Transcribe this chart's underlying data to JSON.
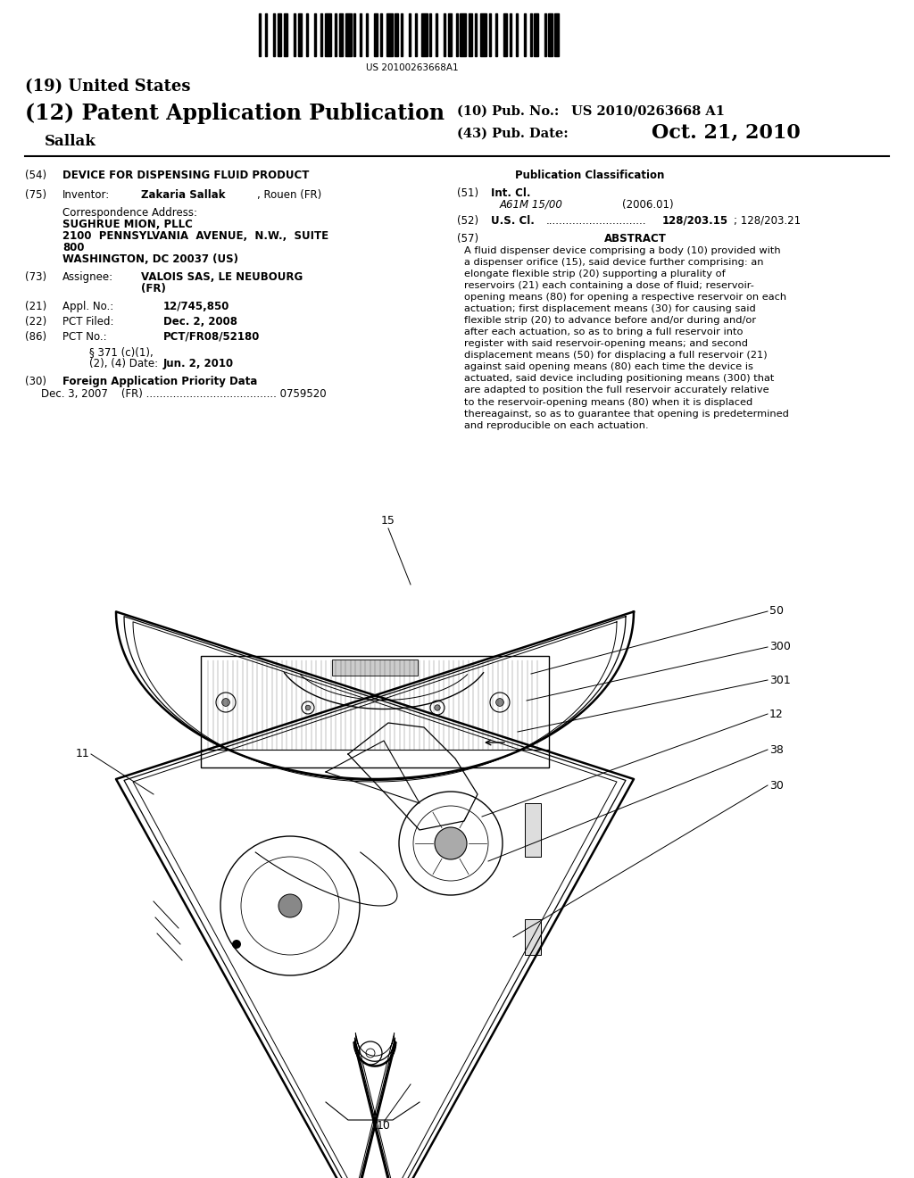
{
  "background_color": "#ffffff",
  "barcode_text": "US 20100263668A1",
  "title_19": "(19) United States",
  "title_12": "(12) Patent Application Publication",
  "pub_no_label": "(10) Pub. No.:",
  "pub_no_value": "US 2010/0263668 A1",
  "pub_date_label": "(43) Pub. Date:",
  "pub_date_value": "Oct. 21, 2010",
  "author": "Sallak",
  "field54_title": "DEVICE FOR DISPENSING FLUID PRODUCT",
  "field75_name_bold": "Zakaria Sallak",
  "field75_name_rest": ", Rouen (FR)",
  "corr_addr_label": "Correspondence Address:",
  "corr_addr_line1": "SUGHRUE MION, PLLC",
  "corr_addr_line2": "2100  PENNSYLVANIA  AVENUE,  N.W.,  SUITE",
  "corr_addr_line3": "800",
  "corr_addr_line4": "WASHINGTON, DC 20037 (US)",
  "field73_val1": "VALOIS SAS, LE NEUBOURG",
  "field73_val2": "(FR)",
  "field21_val": "12/745,850",
  "field22_val": "Dec. 2, 2008",
  "field86_val": "PCT/FR08/52180",
  "field86b_line1": "§ 371 (c)(1),",
  "field86b_line2": "(2), (4) Date:",
  "field86b_val": "Jun. 2, 2010",
  "field30_title": "Foreign Application Priority Data",
  "field30_line": "Dec. 3, 2007    (FR) ....................................... 0759520",
  "pub_class_title": "Publication Classification",
  "field51_class": "A61M 15/00",
  "field51_year": "(2006.01)",
  "field52_dots": "..............................",
  "field52_val": "128/203.15",
  "field52_val2": "; 128/203.21",
  "field57_title": "ABSTRACT",
  "abstract_text": "A fluid dispenser device comprising a body (10) provided with a dispenser orifice (15), said device further comprising: an elongate flexible strip (20) supporting a plurality of reservoirs (21) each containing a dose of fluid; reservoir-opening means (80) for opening a respective reservoir on each actuation; first displacement means (30) for causing said flexible strip (20) to advance before and/or during and/or after each actuation, so as to bring a full reservoir into register with said reservoir-opening means; and second displacement means (50) for displacing a full reservoir (21) against said opening means (80) each time the device is actuated, said device including positioning means (300) that are adapted to position the full reservoir accurately relative to the reservoir-opening means (80) when it is displaced thereagainst, so as to guarantee that opening is predetermined and reproducible on each actuation."
}
